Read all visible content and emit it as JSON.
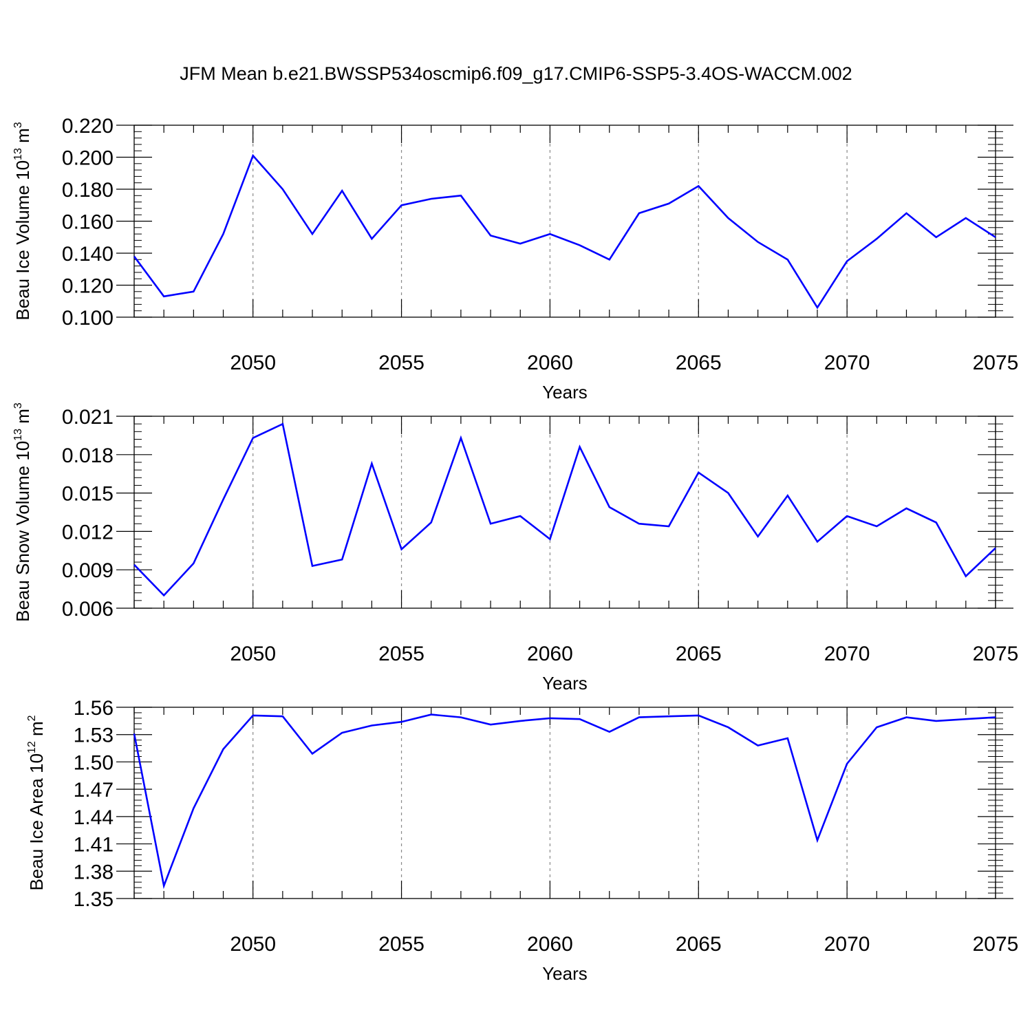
{
  "title": "JFM Mean b.e21.BWSSP534oscmip6.f09_g17.CMIP6-SSP5-3.4OS-WACCM.002",
  "chart_data": [
    {
      "type": "line",
      "ylabel": "Beau Ice Volume 10",
      "ylabel_exp": "13",
      "ylabel_unit": " m",
      "ylabel_unit_exp": "3",
      "xlabel": "Years",
      "xlim": [
        2046,
        2075
      ],
      "ylim": [
        0.1,
        0.22
      ],
      "x_ticks": [
        2050,
        2055,
        2060,
        2065,
        2070,
        2075
      ],
      "y_ticks": [
        0.1,
        0.12,
        0.14,
        0.16,
        0.18,
        0.2,
        0.22
      ],
      "y_tick_labels": [
        "0.100",
        "0.120",
        "0.140",
        "0.160",
        "0.180",
        "0.200",
        "0.220"
      ],
      "grid": "dashed vertical at major x ticks",
      "color": "#0000ff",
      "x": [
        2046,
        2047,
        2048,
        2049,
        2050,
        2051,
        2052,
        2053,
        2054,
        2055,
        2056,
        2057,
        2058,
        2059,
        2060,
        2061,
        2062,
        2063,
        2064,
        2065,
        2066,
        2067,
        2068,
        2069,
        2070,
        2071,
        2072,
        2073,
        2074,
        2075
      ],
      "values": [
        0.138,
        0.113,
        0.116,
        0.152,
        0.201,
        0.18,
        0.152,
        0.179,
        0.149,
        0.17,
        0.174,
        0.176,
        0.151,
        0.146,
        0.152,
        0.145,
        0.136,
        0.165,
        0.171,
        0.182,
        0.162,
        0.147,
        0.136,
        0.106,
        0.135,
        0.149,
        0.165,
        0.15,
        0.162,
        0.15
      ]
    },
    {
      "type": "line",
      "ylabel": "Beau Snow Volume 10",
      "ylabel_exp": "13",
      "ylabel_unit": " m",
      "ylabel_unit_exp": "3",
      "xlabel": "Years",
      "xlim": [
        2046,
        2075
      ],
      "ylim": [
        0.006,
        0.021
      ],
      "x_ticks": [
        2050,
        2055,
        2060,
        2065,
        2070,
        2075
      ],
      "y_ticks": [
        0.006,
        0.009,
        0.012,
        0.015,
        0.018,
        0.021
      ],
      "y_tick_labels": [
        "0.006",
        "0.009",
        "0.012",
        "0.015",
        "0.018",
        "0.021"
      ],
      "grid": "dashed vertical at major x ticks",
      "color": "#0000ff",
      "x": [
        2046,
        2047,
        2048,
        2049,
        2050,
        2051,
        2052,
        2053,
        2054,
        2055,
        2056,
        2057,
        2058,
        2059,
        2060,
        2061,
        2062,
        2063,
        2064,
        2065,
        2066,
        2067,
        2068,
        2069,
        2070,
        2071,
        2072,
        2073,
        2074,
        2075
      ],
      "values": [
        0.0094,
        0.007,
        0.0095,
        0.0145,
        0.0193,
        0.0204,
        0.0093,
        0.0098,
        0.0173,
        0.0106,
        0.0127,
        0.0193,
        0.0126,
        0.0132,
        0.0114,
        0.0186,
        0.0139,
        0.0126,
        0.0124,
        0.0166,
        0.015,
        0.0116,
        0.0148,
        0.0112,
        0.0132,
        0.0124,
        0.0138,
        0.0127,
        0.0085,
        0.0107
      ]
    },
    {
      "type": "line",
      "ylabel": "Beau Ice Area 10",
      "ylabel_exp": "12",
      "ylabel_unit": " m",
      "ylabel_unit_exp": "2",
      "xlabel": "Years",
      "xlim": [
        2046,
        2075
      ],
      "ylim": [
        1.35,
        1.56
      ],
      "x_ticks": [
        2050,
        2055,
        2060,
        2065,
        2070,
        2075
      ],
      "y_ticks": [
        1.35,
        1.38,
        1.41,
        1.44,
        1.47,
        1.5,
        1.53,
        1.56
      ],
      "y_tick_labels": [
        "1.35",
        "1.38",
        "1.41",
        "1.44",
        "1.47",
        "1.50",
        "1.53",
        "1.56"
      ],
      "grid": "dashed vertical at major x ticks",
      "color": "#0000ff",
      "x": [
        2046,
        2047,
        2048,
        2049,
        2050,
        2051,
        2052,
        2053,
        2054,
        2055,
        2056,
        2057,
        2058,
        2059,
        2060,
        2061,
        2062,
        2063,
        2064,
        2065,
        2066,
        2067,
        2068,
        2069,
        2070,
        2071,
        2072,
        2073,
        2074,
        2075
      ],
      "values": [
        1.531,
        1.364,
        1.449,
        1.514,
        1.551,
        1.55,
        1.509,
        1.532,
        1.54,
        1.544,
        1.552,
        1.549,
        1.541,
        1.545,
        1.548,
        1.547,
        1.533,
        1.549,
        1.55,
        1.551,
        1.538,
        1.518,
        1.526,
        1.414,
        1.498,
        1.538,
        1.549,
        1.545,
        1.547,
        1.549
      ]
    }
  ]
}
